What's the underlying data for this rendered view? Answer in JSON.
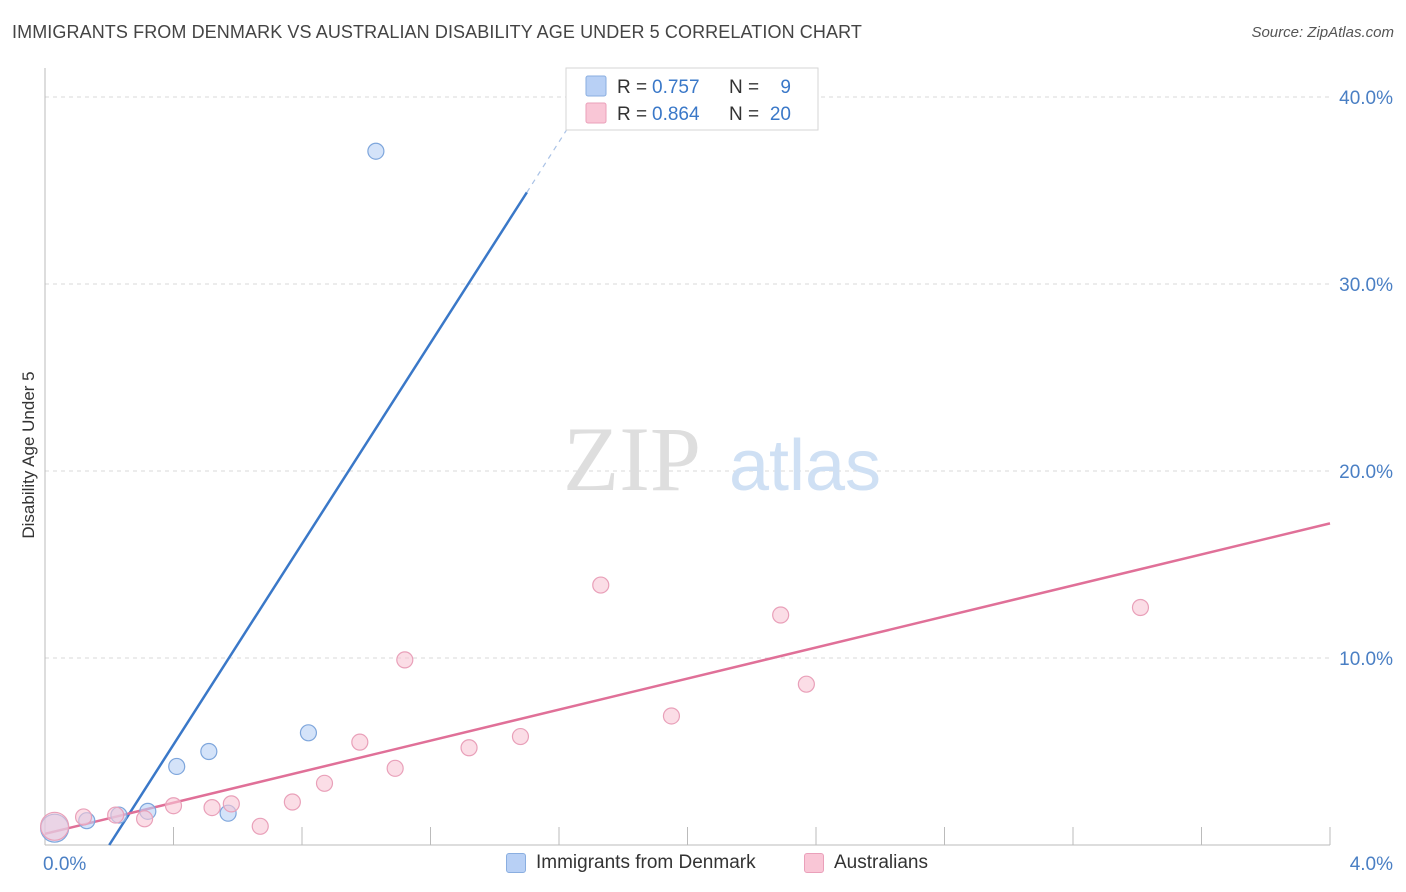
{
  "title": "IMMIGRANTS FROM DENMARK VS AUSTRALIAN DISABILITY AGE UNDER 5 CORRELATION CHART",
  "source": "Source: ZipAtlas.com",
  "watermark": {
    "zip": "ZIP",
    "atlas": "atlas"
  },
  "colors": {
    "blue": "#3a78c8",
    "blue_fill": "#b8d0f5",
    "pink": "#e07098",
    "pink_fill": "#f9c6d6",
    "grid": "#d8d8d8",
    "tick_label": "#4a7fc4"
  },
  "legend_stats": [
    {
      "r_label": "R =",
      "r_value": "0.757",
      "n_label": "N =",
      "n_value": "9",
      "series": "Immigrants from Denmark"
    },
    {
      "r_label": "R =",
      "r_value": "0.864",
      "n_label": "N =",
      "n_value": "20",
      "series": "Australians"
    }
  ],
  "chart_data": {
    "type": "scatter",
    "title": "IMMIGRANTS FROM DENMARK VS AUSTRALIAN DISABILITY AGE UNDER 5 CORRELATION CHART",
    "xlabel": "",
    "ylabel": "Disability Age Under 5",
    "xlim": [
      0,
      4.0
    ],
    "ylim": [
      0,
      40
    ],
    "x_tick_labels": [
      "0.0%",
      "4.0%"
    ],
    "y_ticks": [
      10,
      20,
      30,
      40
    ],
    "y_tick_labels": [
      "10.0%",
      "20.0%",
      "30.0%",
      "40.0%"
    ],
    "grid": true,
    "series": [
      {
        "name": "Immigrants from Denmark",
        "color": "#3a78c8",
        "points": [
          {
            "x": 0.03,
            "y": 0.9,
            "big": true
          },
          {
            "x": 0.13,
            "y": 1.3
          },
          {
            "x": 0.23,
            "y": 1.6
          },
          {
            "x": 0.32,
            "y": 1.8
          },
          {
            "x": 0.41,
            "y": 4.2
          },
          {
            "x": 0.51,
            "y": 5.0
          },
          {
            "x": 0.57,
            "y": 1.7
          },
          {
            "x": 0.82,
            "y": 6.0
          },
          {
            "x": 1.03,
            "y": 37.1
          }
        ],
        "trend": {
          "x1": 0.2,
          "y1": 0.0,
          "x2": 1.5,
          "y2": 34.9,
          "dash_x2": 1.7,
          "dash_y2": 40.3
        }
      },
      {
        "name": "Australians",
        "color": "#e07098",
        "points": [
          {
            "x": 0.03,
            "y": 1.0,
            "big": true
          },
          {
            "x": 0.12,
            "y": 1.5
          },
          {
            "x": 0.22,
            "y": 1.6
          },
          {
            "x": 0.31,
            "y": 1.4
          },
          {
            "x": 0.4,
            "y": 2.1
          },
          {
            "x": 0.52,
            "y": 2.0
          },
          {
            "x": 0.58,
            "y": 2.2
          },
          {
            "x": 0.67,
            "y": 1.0
          },
          {
            "x": 0.77,
            "y": 2.3
          },
          {
            "x": 0.87,
            "y": 3.3
          },
          {
            "x": 0.98,
            "y": 5.5
          },
          {
            "x": 1.09,
            "y": 4.1
          },
          {
            "x": 1.12,
            "y": 9.9
          },
          {
            "x": 1.32,
            "y": 5.2
          },
          {
            "x": 1.48,
            "y": 5.8
          },
          {
            "x": 1.73,
            "y": 13.9
          },
          {
            "x": 1.95,
            "y": 6.9
          },
          {
            "x": 2.29,
            "y": 12.3
          },
          {
            "x": 2.37,
            "y": 8.6
          },
          {
            "x": 3.41,
            "y": 12.7
          }
        ],
        "trend": {
          "x1": 0.0,
          "y1": 0.6,
          "x2": 4.0,
          "y2": 17.2
        }
      }
    ]
  }
}
